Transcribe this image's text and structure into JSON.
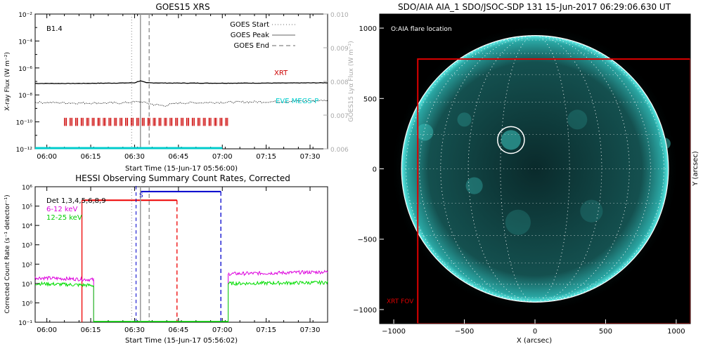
{
  "chart_data": [
    {
      "type": "line",
      "title": "GOES15 XRS",
      "xlabel": "Start Time (15-Jun-17 05:56:00)",
      "ylabel": "X-ray Flux (W m⁻²)",
      "y2label": "GOES15 Lyα Flux (W m⁻²)",
      "x_ticks": [
        "06:00",
        "06:15",
        "06:30",
        "06:45",
        "07:00",
        "07:15",
        "07:30"
      ],
      "x_tick_minutes": [
        360,
        375,
        390,
        405,
        420,
        435,
        450
      ],
      "xlim_minutes": [
        356,
        456
      ],
      "ylim_log10": [
        -12,
        -2
      ],
      "y_ticks": [
        "10⁻¹²",
        "10⁻¹⁰",
        "10⁻⁸",
        "10⁻⁶",
        "10⁻⁴",
        "10⁻²"
      ],
      "y2lim": [
        0.006,
        0.01
      ],
      "y2_ticks": [
        "0.006",
        "0.007",
        "0.008",
        "0.009",
        "0.010"
      ],
      "y2_color": "#aaaaaa",
      "class_annotation": "B1.4",
      "legend": {
        "entries": [
          "GOES Start",
          "GOES Peak",
          "GOES End"
        ],
        "placement": "top-right"
      },
      "goes_start_min": 389,
      "goes_peak_min": 392,
      "goes_end_min": 395,
      "series": [
        {
          "name": "XRT",
          "color": "#cc0000",
          "intervals_minutes": [
            [
              366,
              366.9
            ],
            [
              367.9,
              368.8
            ],
            [
              369.8,
              370.7
            ],
            [
              371.7,
              372.6
            ],
            [
              373.6,
              374.5
            ],
            [
              375.5,
              376.4
            ],
            [
              377.4,
              378.3
            ],
            [
              379.3,
              380.2
            ],
            [
              381.2,
              382.1
            ],
            [
              383.1,
              384
            ],
            [
              385,
              385.9
            ],
            [
              386.9,
              387.8
            ],
            [
              388.8,
              389.7
            ],
            [
              390.7,
              391.6
            ],
            [
              392.6,
              393.5
            ],
            [
              394.5,
              395.4
            ],
            [
              396.4,
              397.3
            ],
            [
              398.3,
              399.2
            ],
            [
              400.2,
              401.1
            ],
            [
              402.1,
              403
            ],
            [
              404,
              404.9
            ],
            [
              405.9,
              406.8
            ],
            [
              407.8,
              408.7
            ],
            [
              409.7,
              410.6
            ],
            [
              411.6,
              412.5
            ],
            [
              413.5,
              414.4
            ],
            [
              415.4,
              416.3
            ],
            [
              417.3,
              418.2
            ],
            [
              419.2,
              420.1
            ],
            [
              421.1,
              422
            ]
          ]
        },
        {
          "name": "EVE MEGS-P",
          "color": "#00cccc",
          "x_minutes": [
            356,
            420
          ],
          "value_log10": -12
        }
      ],
      "curves": [
        {
          "name": "long channel",
          "color": "#000000",
          "x_minutes": [
            356,
            370,
            385,
            390,
            392,
            394,
            400,
            420,
            440,
            456
          ],
          "y_log10": [
            -7.15,
            -7.15,
            -7.12,
            -7.1,
            -6.95,
            -7.1,
            -7.12,
            -7.13,
            -7.12,
            -7.1
          ]
        },
        {
          "name": "short channel",
          "color": "#000000",
          "dotted": true,
          "x_minutes": [
            356,
            370,
            385,
            392,
            396,
            400,
            405,
            420,
            440,
            456
          ],
          "y_log10": [
            -8.55,
            -8.6,
            -8.6,
            -8.5,
            -8.7,
            -8.8,
            -8.6,
            -8.55,
            -8.5,
            -8.4
          ]
        }
      ]
    },
    {
      "type": "line",
      "title": "HESSI Observing Summary Count Rates, Corrected",
      "xlabel": "Start Time (15-Jun-17 05:56:02)",
      "ylabel": "Corrected Count Rate (s⁻¹ detector⁻¹)",
      "x_ticks": [
        "06:00",
        "06:15",
        "06:30",
        "06:45",
        "07:00",
        "07:15",
        "07:30"
      ],
      "x_tick_minutes": [
        360,
        375,
        390,
        405,
        420,
        435,
        450
      ],
      "xlim_minutes": [
        356,
        456
      ],
      "ylim_log10": [
        -1,
        6
      ],
      "y_ticks": [
        "10⁻¹",
        "10⁰",
        "10¹",
        "10²",
        "10³",
        "10⁴",
        "10⁵",
        "10⁶"
      ],
      "detectors_label": "Det 1,3,4,5,6,8,9",
      "saa_label": "S",
      "series": [
        {
          "name": "6-12 keV",
          "color": "#dd00dd",
          "segments": [
            {
              "x_minutes": [
                356,
                376
              ],
              "y_log10": [
                1.3,
                1.2
              ]
            },
            {
              "x_minutes": [
                422,
                456
              ],
              "y_log10": [
                1.5,
                1.6
              ]
            }
          ]
        },
        {
          "name": "12-25 keV",
          "color": "#00dd00",
          "segments": [
            {
              "x_minutes": [
                356,
                376
              ],
              "y_log10": [
                1.0,
                0.9
              ]
            },
            {
              "x_minutes": [
                422,
                456
              ],
              "y_log10": [
                1.0,
                1.05
              ]
            }
          ]
        }
      ],
      "night_interval_minutes": [
        372,
        404.5
      ],
      "saa_interval_minutes": [
        390.5,
        419.5
      ],
      "goes_lines_minutes": [
        389,
        392,
        395
      ]
    }
  ],
  "aia": {
    "title": "SDO/AIA AIA_1 SDO/JSOC-SDP 131 15-Jun-2017 06:29:06.630 UT",
    "flare_label": "O:AIA flare location",
    "fov_label": "XRT FOV",
    "xlabel": "X (arcsec)",
    "ylabel": "Y (arcsec)",
    "x_ticks": [
      "−1000",
      "−500",
      "0",
      "500",
      "1000"
    ],
    "y_ticks": [
      "1000",
      "500",
      "0",
      "−500",
      "−1000"
    ],
    "tick_values": [
      -1000,
      -500,
      0,
      500,
      1000
    ],
    "xlim": [
      -1100,
      1100
    ],
    "ylim": [
      -1100,
      1100
    ],
    "solar_radius_arcsec": 945,
    "flare_center": [
      -170,
      205
    ],
    "flare_radius_arcsec": 95,
    "fov_box": [
      -830,
      1100,
      -1100,
      780
    ],
    "colors": {
      "disk": "#0e3a3a",
      "limb": "#3fd0cc",
      "fov": "#dd0000"
    }
  }
}
